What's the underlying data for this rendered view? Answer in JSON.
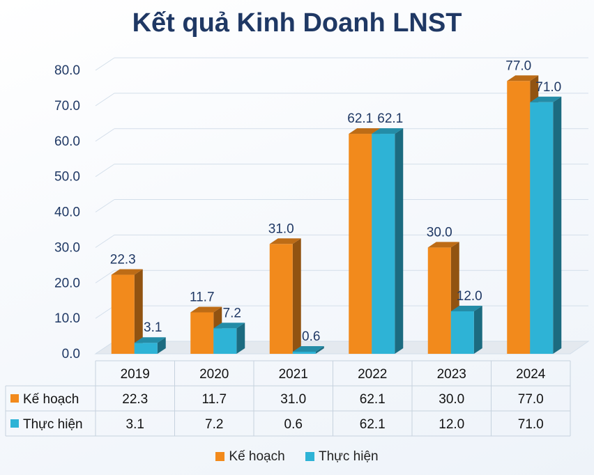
{
  "chart_data": {
    "type": "bar",
    "title": "Kết quả Kinh Doanh LNST",
    "categories": [
      "2019",
      "2020",
      "2021",
      "2022",
      "2023",
      "2024"
    ],
    "series": [
      {
        "name": "Kế hoạch",
        "values": [
          22.3,
          11.7,
          31.0,
          62.1,
          30.0,
          77.0
        ],
        "labels": [
          "22.3",
          "11.7",
          "31.0",
          "62.1",
          "30.0",
          "77.0"
        ],
        "color": "#f28a1c"
      },
      {
        "name": "Thực hiện",
        "values": [
          3.1,
          7.2,
          0.6,
          62.1,
          12.0,
          71.0
        ],
        "labels": [
          "3.1",
          "7.2",
          "0.6",
          "62.1",
          "12.0",
          "71.0"
        ],
        "color": "#2eb3d6"
      }
    ],
    "yticks": [
      "0.0",
      "10.0",
      "20.0",
      "30.0",
      "40.0",
      "50.0",
      "60.0",
      "70.0",
      "80.0"
    ],
    "ylim": [
      0,
      80
    ],
    "grid": true,
    "data_table": true,
    "legend_position": "bottom"
  }
}
